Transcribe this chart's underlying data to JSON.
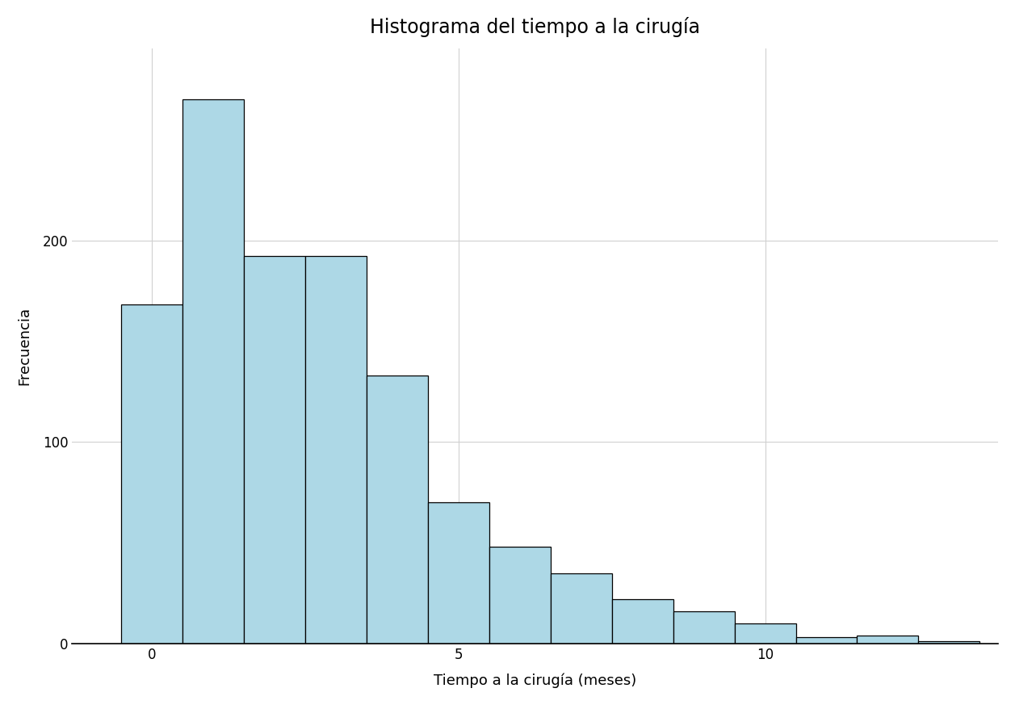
{
  "title": "Histograma del tiempo a la cirugía",
  "xlabel": "Tiempo a la cirugía (meses)",
  "ylabel": "Frecuencia",
  "bin_heights": [
    168,
    270,
    192,
    192,
    133,
    70,
    48,
    35,
    22,
    16,
    10,
    3,
    4,
    1
  ],
  "bin_start": -0.5,
  "bin_width": 1.0,
  "bar_color": "#ADD8E6",
  "bar_edge_color": "#000000",
  "background_color": "#ffffff",
  "grid_color": "#d0d0d0",
  "title_fontsize": 17,
  "label_fontsize": 13,
  "tick_fontsize": 12,
  "xlim_left": -1.3,
  "xlim_right": 13.8,
  "ylim_top": 295,
  "yticks": [
    0,
    100,
    200
  ],
  "xticks": [
    0,
    5,
    10
  ]
}
